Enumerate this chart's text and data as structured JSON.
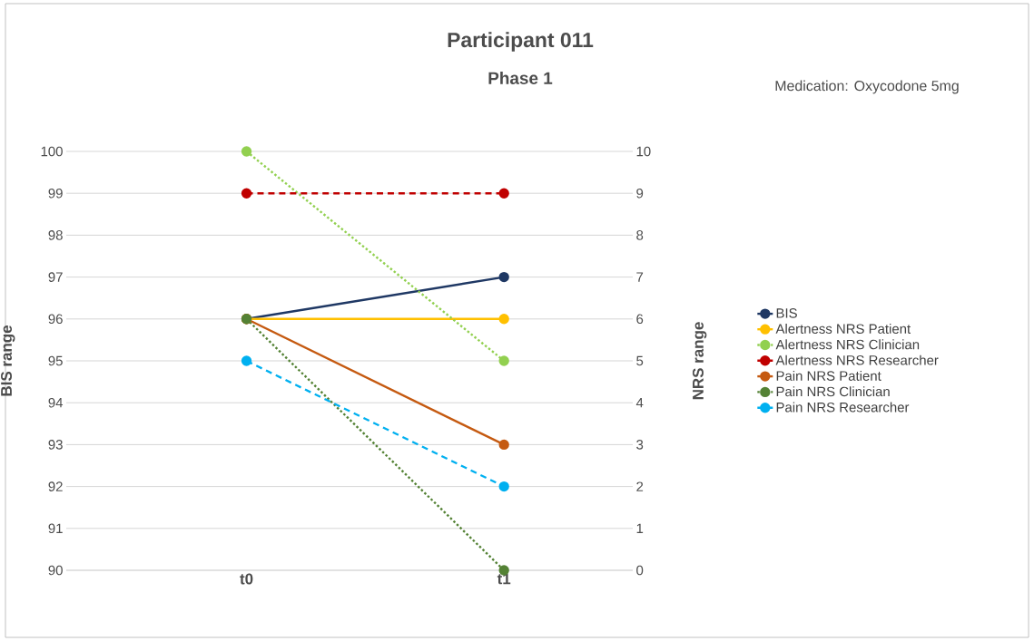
{
  "chart_data": {
    "type": "line",
    "title": "Participant 011",
    "subtitle": "Phase 1",
    "ylabel": "BIS range",
    "y2label": "NRS range",
    "annotations": [
      "Medication: Oxycodone 5mg"
    ],
    "categories": [
      "t0",
      "t1"
    ],
    "ylim": [
      90,
      100
    ],
    "yticks": [
      90,
      91,
      92,
      93,
      94,
      95,
      96,
      97,
      98,
      99,
      100
    ],
    "y2lim": [
      0,
      10
    ],
    "y2ticks": [
      0,
      1,
      2,
      3,
      4,
      5,
      6,
      7,
      8,
      9,
      10
    ],
    "grid": "y",
    "legend": "right",
    "marker": "circle",
    "series": [
      {
        "name": "BIS",
        "color": "#1f3864",
        "values": [
          96,
          97
        ],
        "line_style": "solid"
      },
      {
        "name": "Alertness NRS Patient",
        "color": "#ffc000",
        "values": [
          6,
          6
        ],
        "axis": "y2",
        "line_style": "solid"
      },
      {
        "name": "Alertness NRS Clinician",
        "color": "#92d050",
        "values": [
          10,
          5
        ],
        "axis": "y2",
        "line_style": "dotted"
      },
      {
        "name": "Alertness NRS Researcher",
        "color": "#c00000",
        "values": [
          9,
          9
        ],
        "axis": "y2",
        "line_style": "dashed"
      },
      {
        "name": "Pain NRS Patient",
        "color": "#c55a11",
        "values": [
          6,
          3
        ],
        "axis": "y2",
        "line_style": "solid"
      },
      {
        "name": "Pain NRS Clinician",
        "color": "#548235",
        "values": [
          6,
          0
        ],
        "axis": "y2",
        "line_style": "dotted"
      },
      {
        "name": "Pain NRS Researcher",
        "color": "#00b0f0",
        "values": [
          5,
          2
        ],
        "axis": "y2",
        "line_style": "dashed"
      }
    ]
  }
}
